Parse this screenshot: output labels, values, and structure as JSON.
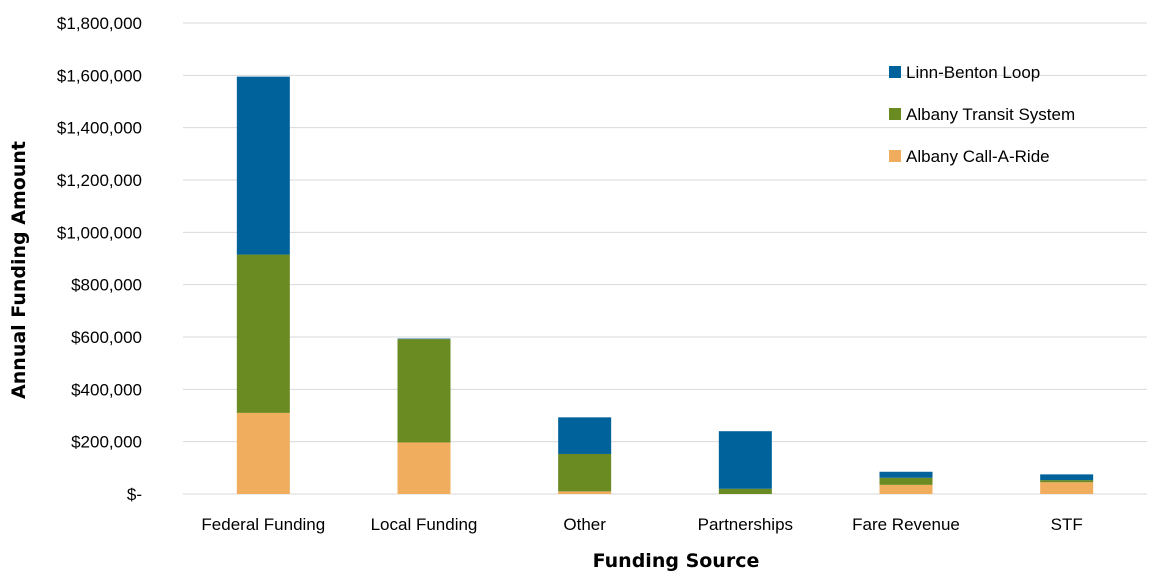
{
  "chart_data": {
    "type": "bar",
    "stacked": true,
    "categories": [
      "Federal Funding",
      "Local Funding",
      "Other",
      "Partnerships",
      "Fare Revenue",
      "STF"
    ],
    "series": [
      {
        "name": "Albany Call-A-Ride",
        "color": "#F0AD5E",
        "values": [
          310000,
          197000,
          10000,
          0,
          35000,
          45000
        ]
      },
      {
        "name": "Albany Transit System",
        "color": "#6A8A22",
        "values": [
          605000,
          395000,
          143000,
          20000,
          27000,
          8000
        ]
      },
      {
        "name": "Linn-Benton Loop",
        "color": "#00629B",
        "values": [
          680000,
          2000,
          140000,
          220000,
          23000,
          22000
        ]
      }
    ],
    "legend_order": [
      "Linn-Benton Loop",
      "Albany Transit System",
      "Albany Call-A-Ride"
    ],
    "legend_position": "top-right",
    "xlabel": "Funding Source",
    "ylabel": "Annual Funding Amount",
    "ylim": [
      0,
      1800000
    ],
    "yticks": [
      0,
      200000,
      400000,
      600000,
      800000,
      1000000,
      1200000,
      1400000,
      1600000,
      1800000
    ],
    "ytick_labels": [
      "$-",
      "$200,000",
      "$400,000",
      "$600,000",
      "$800,000",
      "$1,000,000",
      "$1,200,000",
      "$1,400,000",
      "$1,600,000",
      "$1,800,000"
    ],
    "grid": true,
    "gridline_color": "#d9d9d9"
  }
}
